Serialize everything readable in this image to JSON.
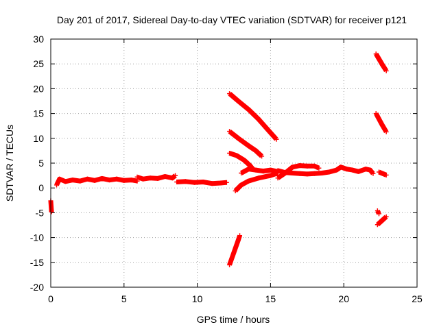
{
  "chart_data": {
    "type": "scatter",
    "title": "Day 201 of 2017, Sidereal Day-to-day VTEC variation (SDTVAR) for receiver p121",
    "xlabel": "GPS time / hours",
    "ylabel": "SDTVAR / TECUs",
    "xlim": [
      0,
      25
    ],
    "ylim": [
      -20,
      30
    ],
    "x_ticks": [
      0,
      5,
      10,
      15,
      20,
      25
    ],
    "y_ticks": [
      -20,
      -15,
      -10,
      -5,
      0,
      5,
      10,
      15,
      20,
      25,
      30
    ],
    "x_tick_labels": [
      "0",
      "5",
      "10",
      "15",
      "20",
      "25"
    ],
    "y_tick_labels": [
      "-20",
      "-15",
      "-10",
      "-5",
      "0",
      "5",
      "10",
      "15",
      "20",
      "25",
      "30"
    ],
    "grid": true,
    "marker": "plus",
    "color": "#ff0000",
    "series": [
      {
        "points": [
          [
            0.0,
            -2.6
          ],
          [
            0.05,
            -4.8
          ]
        ]
      },
      {
        "points": [
          [
            0.4,
            0.6
          ],
          [
            0.6,
            1.8
          ],
          [
            1.0,
            1.3
          ],
          [
            1.5,
            1.6
          ],
          [
            2.0,
            1.4
          ],
          [
            2.5,
            1.8
          ],
          [
            3.0,
            1.5
          ],
          [
            3.5,
            1.9
          ],
          [
            4.0,
            1.6
          ],
          [
            4.5,
            1.8
          ],
          [
            5.0,
            1.5
          ],
          [
            5.5,
            1.6
          ],
          [
            5.9,
            1.4
          ]
        ]
      },
      {
        "points": [
          [
            5.9,
            2.2
          ],
          [
            6.3,
            1.8
          ],
          [
            6.8,
            2.0
          ],
          [
            7.3,
            1.9
          ],
          [
            7.8,
            2.3
          ],
          [
            8.3,
            2.0
          ],
          [
            8.5,
            2.5
          ]
        ]
      },
      {
        "points": [
          [
            8.6,
            1.2
          ],
          [
            9.2,
            1.3
          ],
          [
            9.8,
            1.1
          ],
          [
            10.4,
            1.2
          ],
          [
            11.0,
            0.9
          ],
          [
            11.6,
            1.0
          ],
          [
            12.0,
            1.1
          ]
        ]
      },
      {
        "points": [
          [
            12.2,
            19.0
          ],
          [
            12.8,
            17.5
          ],
          [
            13.5,
            15.8
          ],
          [
            14.2,
            13.8
          ],
          [
            14.8,
            11.8
          ],
          [
            15.4,
            9.8
          ]
        ]
      },
      {
        "points": [
          [
            12.2,
            11.4
          ],
          [
            12.8,
            10.0
          ],
          [
            13.5,
            8.5
          ],
          [
            14.0,
            7.5
          ],
          [
            14.4,
            6.4
          ]
        ]
      },
      {
        "points": [
          [
            12.2,
            7.0
          ],
          [
            12.7,
            6.5
          ],
          [
            13.2,
            5.6
          ],
          [
            13.6,
            4.5
          ],
          [
            13.8,
            3.8
          ]
        ]
      },
      {
        "points": [
          [
            12.2,
            -15.5
          ],
          [
            12.5,
            -13.0
          ],
          [
            12.8,
            -10.5
          ],
          [
            12.9,
            -9.6
          ]
        ]
      },
      {
        "points": [
          [
            12.6,
            -0.6
          ],
          [
            13.0,
            0.6
          ],
          [
            13.5,
            1.4
          ],
          [
            14.2,
            2.0
          ],
          [
            15.0,
            2.5
          ],
          [
            15.5,
            3.0
          ]
        ]
      },
      {
        "points": [
          [
            13.0,
            3.0
          ],
          [
            13.5,
            3.8
          ],
          [
            14.0,
            3.6
          ],
          [
            14.5,
            3.4
          ],
          [
            15.0,
            3.6
          ],
          [
            15.5,
            3.3
          ]
        ]
      },
      {
        "points": [
          [
            15.5,
            2.0
          ],
          [
            16.0,
            3.0
          ],
          [
            16.5,
            4.2
          ],
          [
            17.0,
            4.5
          ],
          [
            17.5,
            4.4
          ],
          [
            18.0,
            4.4
          ],
          [
            18.3,
            4.0
          ]
        ]
      },
      {
        "points": [
          [
            15.5,
            3.5
          ],
          [
            16.0,
            3.1
          ],
          [
            16.5,
            3.0
          ],
          [
            17.0,
            2.9
          ],
          [
            17.5,
            2.8
          ],
          [
            18.0,
            2.9
          ],
          [
            18.5,
            3.0
          ],
          [
            19.0,
            3.2
          ],
          [
            19.5,
            3.6
          ],
          [
            19.8,
            4.2
          ],
          [
            20.2,
            3.8
          ],
          [
            20.6,
            3.6
          ],
          [
            21.0,
            3.3
          ],
          [
            21.5,
            3.8
          ],
          [
            21.8,
            3.6
          ],
          [
            22.0,
            2.9
          ]
        ]
      },
      {
        "points": [
          [
            22.2,
            27.0
          ],
          [
            22.6,
            25.0
          ],
          [
            22.9,
            23.6
          ]
        ]
      },
      {
        "points": [
          [
            22.2,
            15.0
          ],
          [
            22.6,
            12.8
          ],
          [
            22.9,
            11.3
          ]
        ]
      },
      {
        "points": [
          [
            22.4,
            3.2
          ],
          [
            22.9,
            2.6
          ]
        ]
      },
      {
        "points": [
          [
            22.3,
            -4.6
          ],
          [
            22.4,
            -5.2
          ]
        ]
      },
      {
        "points": [
          [
            22.3,
            -7.4
          ],
          [
            22.6,
            -6.6
          ],
          [
            22.9,
            -5.8
          ]
        ]
      }
    ]
  }
}
